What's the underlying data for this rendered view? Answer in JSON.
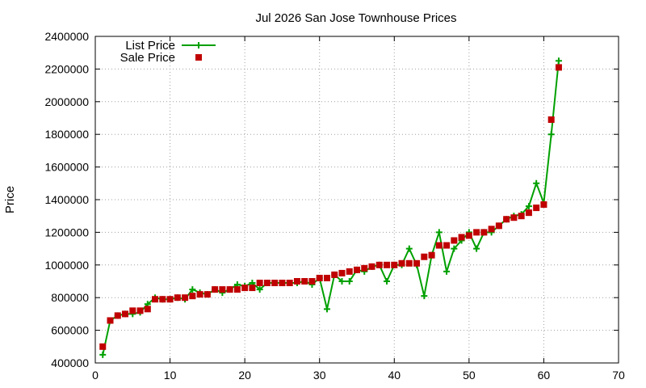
{
  "chart_data": {
    "type": "line",
    "title": "Jul 2026 San Jose Townhouse Prices",
    "xlabel": "",
    "ylabel": "Price",
    "xlim": [
      0,
      70
    ],
    "ylim": [
      400000,
      2400000
    ],
    "x_ticks": [
      0,
      10,
      20,
      30,
      40,
      50,
      60,
      70
    ],
    "y_ticks": [
      400000,
      600000,
      800000,
      1000000,
      1200000,
      1400000,
      1600000,
      1800000,
      2000000,
      2200000,
      2400000
    ],
    "grid": true,
    "legend_position": "top-left",
    "colors": {
      "list": "#00a000",
      "sale": "#c00000"
    },
    "x": [
      1,
      2,
      3,
      4,
      5,
      6,
      7,
      8,
      9,
      10,
      11,
      12,
      13,
      14,
      15,
      16,
      17,
      18,
      19,
      20,
      21,
      22,
      23,
      24,
      25,
      26,
      27,
      28,
      29,
      30,
      31,
      32,
      33,
      34,
      35,
      36,
      37,
      38,
      39,
      40,
      41,
      42,
      43,
      44,
      45,
      46,
      47,
      48,
      49,
      50,
      51,
      52,
      53,
      54,
      55,
      56,
      57,
      58,
      59,
      60,
      61,
      62
    ],
    "series": [
      {
        "name": "List Price",
        "values": [
          450000,
          660000,
          690000,
          700000,
          700000,
          710000,
          760000,
          800000,
          790000,
          790000,
          800000,
          790000,
          850000,
          830000,
          820000,
          850000,
          830000,
          850000,
          880000,
          870000,
          890000,
          850000,
          890000,
          890000,
          890000,
          890000,
          890000,
          900000,
          880000,
          920000,
          730000,
          940000,
          900000,
          900000,
          970000,
          960000,
          990000,
          1000000,
          900000,
          1000000,
          1000000,
          1100000,
          1000000,
          810000,
          1060000,
          1200000,
          960000,
          1100000,
          1150000,
          1200000,
          1100000,
          1200000,
          1200000,
          1240000,
          1280000,
          1300000,
          1310000,
          1360000,
          1500000,
          1380000,
          1800000,
          2250000
        ]
      },
      {
        "name": "Sale Price",
        "values": [
          500000,
          660000,
          690000,
          700000,
          720000,
          720000,
          730000,
          790000,
          790000,
          790000,
          800000,
          800000,
          810000,
          820000,
          820000,
          850000,
          850000,
          850000,
          850000,
          860000,
          860000,
          890000,
          890000,
          890000,
          890000,
          890000,
          900000,
          900000,
          900000,
          920000,
          920000,
          940000,
          950000,
          960000,
          970000,
          980000,
          990000,
          1000000,
          1000000,
          1000000,
          1010000,
          1010000,
          1010000,
          1050000,
          1060000,
          1120000,
          1120000,
          1150000,
          1170000,
          1180000,
          1200000,
          1200000,
          1220000,
          1240000,
          1280000,
          1290000,
          1300000,
          1320000,
          1350000,
          1370000,
          1890000,
          2210000
        ]
      }
    ]
  }
}
